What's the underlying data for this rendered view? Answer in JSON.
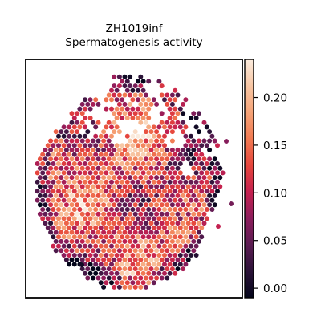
{
  "chart_data": {
    "type": "scatter",
    "title": "ZH1019inf",
    "subtitle": "Spermatogenesis activity",
    "xlabel": "",
    "ylabel": "",
    "grid": false,
    "colormap": "rocket",
    "colorbar": {
      "range": [
        -0.01,
        0.24
      ],
      "ticks": [
        0.0,
        0.05,
        0.1,
        0.15,
        0.2
      ],
      "tick_labels": [
        "0.00",
        "0.05",
        "0.10",
        "0.15",
        "0.20"
      ]
    }
  },
  "colors": {
    "rocket": [
      "#03051a",
      "#2b1338",
      "#5b1c52",
      "#8c1d5c",
      "#c5214f",
      "#e6463c",
      "#f17a52",
      "#f5a377",
      "#f7c6a4",
      "#faebdd"
    ]
  }
}
